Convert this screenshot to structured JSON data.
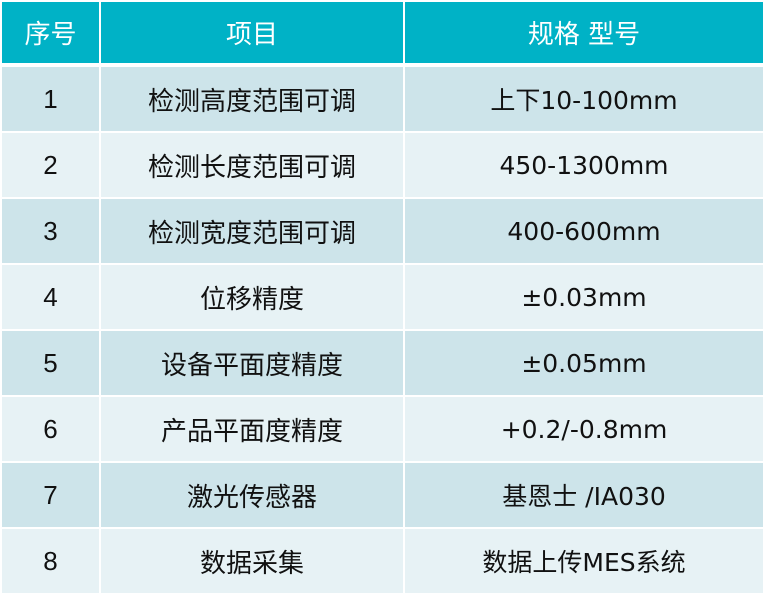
{
  "header": {
    "no": "序号",
    "item": "项目",
    "spec": "规格 型号"
  },
  "colors": {
    "header_bg": "#00B2C6",
    "row_odd": "#CDE4EA",
    "row_even": "#E7F2F5"
  },
  "rows": [
    {
      "no": "1",
      "item": "检测高度范围可调",
      "spec": "上下10-100mm"
    },
    {
      "no": "2",
      "item": "检测长度范围可调",
      "spec": "450-1300mm"
    },
    {
      "no": "3",
      "item": "检测宽度范围可调",
      "spec": "400-600mm"
    },
    {
      "no": "4",
      "item": "位移精度",
      "spec": "±0.03mm"
    },
    {
      "no": "5",
      "item": "设备平面度精度",
      "spec": "±0.05mm"
    },
    {
      "no": "6",
      "item": "产品平面度精度",
      "spec": "+0.2/-0.8mm"
    },
    {
      "no": "7",
      "item": "激光传感器",
      "spec": "基恩士 /IA030"
    },
    {
      "no": "8",
      "item": "数据采集",
      "spec": "数据上传MES系统"
    }
  ]
}
